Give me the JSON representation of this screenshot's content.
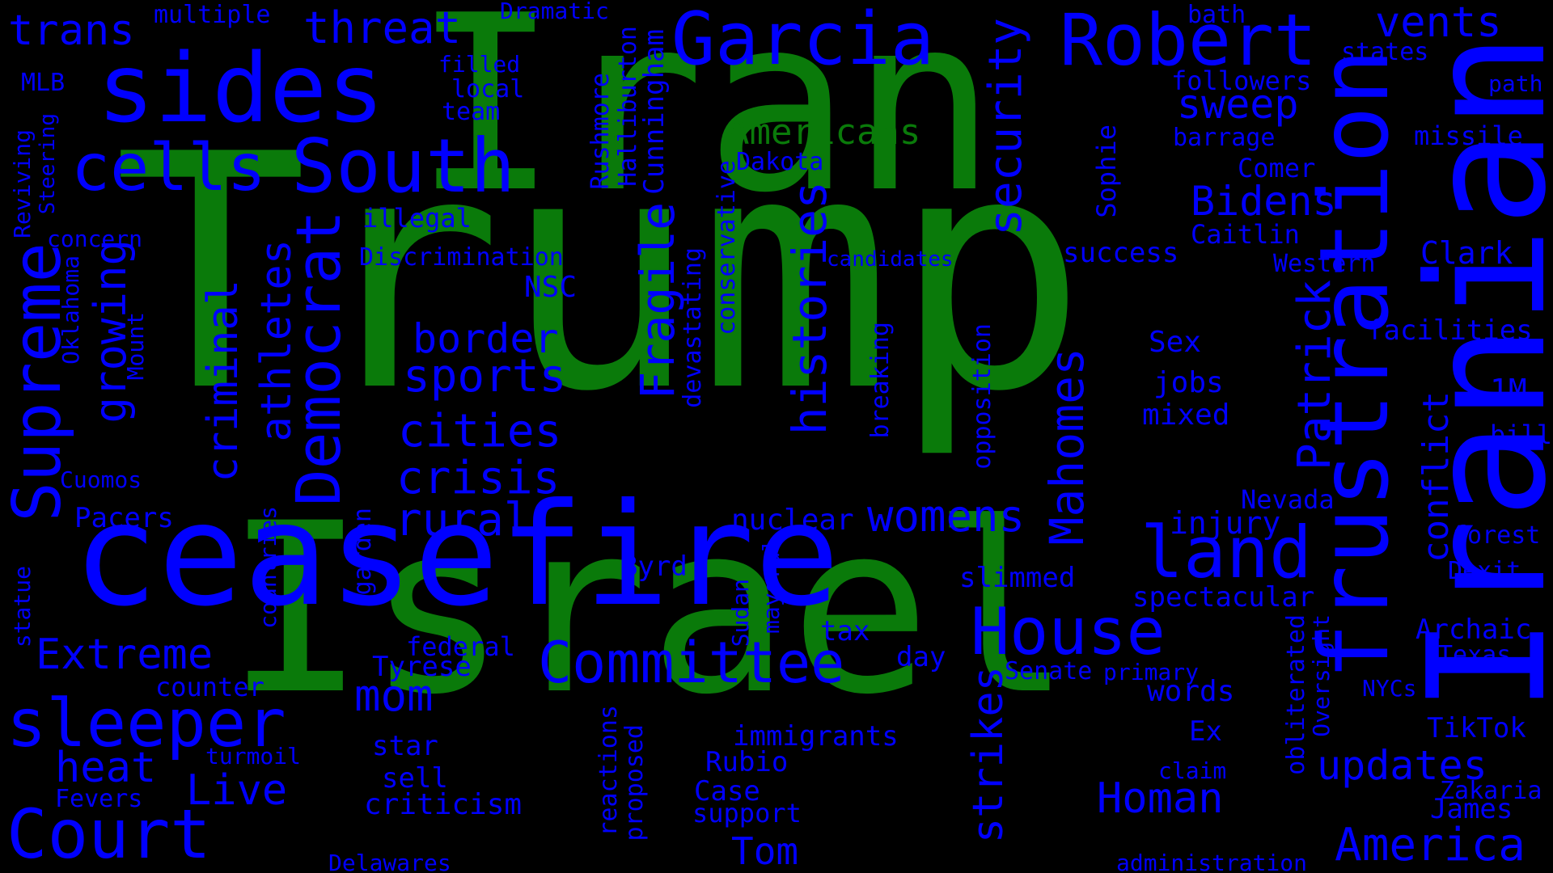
{
  "colors": {
    "background": "#000000",
    "major": "#0a7a0a",
    "minor": "#0000ff"
  },
  "words": [
    {
      "text": "Trump",
      "group": "major"
    },
    {
      "text": "Iran",
      "group": "major"
    },
    {
      "text": "Israel",
      "group": "major"
    },
    {
      "text": "Americans",
      "group": "major"
    },
    {
      "text": "Iranian",
      "group": "minor"
    },
    {
      "text": "ceasefire",
      "group": "minor"
    },
    {
      "text": "frustration",
      "group": "minor"
    },
    {
      "text": "sides",
      "group": "minor"
    },
    {
      "text": "Garcia",
      "group": "minor"
    },
    {
      "text": "Robert",
      "group": "minor"
    },
    {
      "text": "South",
      "group": "minor"
    },
    {
      "text": "cells",
      "group": "minor"
    },
    {
      "text": "Court",
      "group": "minor"
    },
    {
      "text": "sleeper",
      "group": "minor"
    },
    {
      "text": "Supreme",
      "group": "minor"
    },
    {
      "text": "House",
      "group": "minor"
    },
    {
      "text": "Committee",
      "group": "minor"
    },
    {
      "text": "America",
      "group": "minor"
    },
    {
      "text": "threat",
      "group": "minor"
    },
    {
      "text": "vents",
      "group": "minor"
    },
    {
      "text": "trans",
      "group": "minor"
    },
    {
      "text": "multiple",
      "group": "minor"
    },
    {
      "text": "Dramatic",
      "group": "minor"
    },
    {
      "text": "bath",
      "group": "minor"
    },
    {
      "text": "states",
      "group": "minor"
    },
    {
      "text": "path",
      "group": "minor"
    },
    {
      "text": "MLB",
      "group": "minor"
    },
    {
      "text": "filled",
      "group": "minor"
    },
    {
      "text": "local",
      "group": "minor"
    },
    {
      "text": "team",
      "group": "minor"
    },
    {
      "text": "followers",
      "group": "minor"
    },
    {
      "text": "sweep",
      "group": "minor"
    },
    {
      "text": "barrage",
      "group": "minor"
    },
    {
      "text": "missile",
      "group": "minor"
    },
    {
      "text": "Comer",
      "group": "minor"
    },
    {
      "text": "Bidens",
      "group": "minor"
    },
    {
      "text": "Caitlin",
      "group": "minor"
    },
    {
      "text": "Dakota",
      "group": "minor"
    },
    {
      "text": "illegal",
      "group": "minor"
    },
    {
      "text": "concern",
      "group": "minor"
    },
    {
      "text": "Discrimination",
      "group": "minor"
    },
    {
      "text": "candidates",
      "group": "minor"
    },
    {
      "text": "success",
      "group": "minor"
    },
    {
      "text": "Western",
      "group": "minor"
    },
    {
      "text": "Clark",
      "group": "minor"
    },
    {
      "text": "facilities",
      "group": "minor"
    },
    {
      "text": "NSC",
      "group": "minor"
    },
    {
      "text": "border",
      "group": "minor"
    },
    {
      "text": "Sex",
      "group": "minor"
    },
    {
      "text": "jobs",
      "group": "minor"
    },
    {
      "text": "mixed",
      "group": "minor"
    },
    {
      "text": "1M",
      "group": "minor"
    },
    {
      "text": "bill",
      "group": "minor"
    },
    {
      "text": "sports",
      "group": "minor"
    },
    {
      "text": "cities",
      "group": "minor"
    },
    {
      "text": "crisis",
      "group": "minor"
    },
    {
      "text": "rural",
      "group": "minor"
    },
    {
      "text": "Cuomos",
      "group": "minor"
    },
    {
      "text": "Pacers",
      "group": "minor"
    },
    {
      "text": "womens",
      "group": "minor"
    },
    {
      "text": "Nevada",
      "group": "minor"
    },
    {
      "text": "injury",
      "group": "minor"
    },
    {
      "text": "forest",
      "group": "minor"
    },
    {
      "text": "nuclear",
      "group": "minor"
    },
    {
      "text": "land",
      "group": "minor"
    },
    {
      "text": "Byrd",
      "group": "minor"
    },
    {
      "text": "slimmed",
      "group": "minor"
    },
    {
      "text": "Dexit",
      "group": "minor"
    },
    {
      "text": "spectacular",
      "group": "minor"
    },
    {
      "text": "Archaic",
      "group": "minor"
    },
    {
      "text": "Extreme",
      "group": "minor"
    },
    {
      "text": "tax",
      "group": "minor"
    },
    {
      "text": "federal",
      "group": "minor"
    },
    {
      "text": "day",
      "group": "minor"
    },
    {
      "text": "Texas",
      "group": "minor"
    },
    {
      "text": "Tyrese",
      "group": "minor"
    },
    {
      "text": "Senate",
      "group": "minor"
    },
    {
      "text": "primary",
      "group": "minor"
    },
    {
      "text": "counter",
      "group": "minor"
    },
    {
      "text": "words",
      "group": "minor"
    },
    {
      "text": "NYCs",
      "group": "minor"
    },
    {
      "text": "mom",
      "group": "minor"
    },
    {
      "text": "immigrants",
      "group": "minor"
    },
    {
      "text": "Ex",
      "group": "minor"
    },
    {
      "text": "TikTok",
      "group": "minor"
    },
    {
      "text": "heat",
      "group": "minor"
    },
    {
      "text": "turmoil",
      "group": "minor"
    },
    {
      "text": "star",
      "group": "minor"
    },
    {
      "text": "Rubio",
      "group": "minor"
    },
    {
      "text": "updates",
      "group": "minor"
    },
    {
      "text": "sell",
      "group": "minor"
    },
    {
      "text": "claim",
      "group": "minor"
    },
    {
      "text": "Live",
      "group": "minor"
    },
    {
      "text": "Fevers",
      "group": "minor"
    },
    {
      "text": "Case",
      "group": "minor"
    },
    {
      "text": "Zakaria",
      "group": "minor"
    },
    {
      "text": "criticism",
      "group": "minor"
    },
    {
      "text": "Homan",
      "group": "minor"
    },
    {
      "text": "support",
      "group": "minor"
    },
    {
      "text": "James",
      "group": "minor"
    },
    {
      "text": "Tom",
      "group": "minor"
    },
    {
      "text": "Delawares",
      "group": "minor"
    },
    {
      "text": "administration",
      "group": "minor"
    },
    {
      "text": "Reviving",
      "group": "minor"
    },
    {
      "text": "Steering",
      "group": "minor"
    },
    {
      "text": "Oklahoma",
      "group": "minor"
    },
    {
      "text": "Mount",
      "group": "minor"
    },
    {
      "text": "growing",
      "group": "minor"
    },
    {
      "text": "criminal",
      "group": "minor"
    },
    {
      "text": "athletes",
      "group": "minor"
    },
    {
      "text": "Democrat",
      "group": "minor"
    },
    {
      "text": "statue",
      "group": "minor"
    },
    {
      "text": "countries",
      "group": "minor"
    },
    {
      "text": "garden",
      "group": "minor"
    },
    {
      "text": "Rushmore",
      "group": "minor"
    },
    {
      "text": "Halliburton",
      "group": "minor"
    },
    {
      "text": "Cunningham",
      "group": "minor"
    },
    {
      "text": "Fragile",
      "group": "minor"
    },
    {
      "text": "conservative",
      "group": "minor"
    },
    {
      "text": "devastating",
      "group": "minor"
    },
    {
      "text": "histories",
      "group": "minor"
    },
    {
      "text": "security",
      "group": "minor"
    },
    {
      "text": "breaking",
      "group": "minor"
    },
    {
      "text": "Sophie",
      "group": "minor"
    },
    {
      "text": "opposition",
      "group": "minor"
    },
    {
      "text": "Mahomes",
      "group": "minor"
    },
    {
      "text": "Patrick",
      "group": "minor"
    },
    {
      "text": "conflict",
      "group": "minor"
    },
    {
      "text": "Sudan",
      "group": "minor"
    },
    {
      "text": "mayoral",
      "group": "minor"
    },
    {
      "text": "strikes",
      "group": "minor"
    },
    {
      "text": "obliterated",
      "group": "minor"
    },
    {
      "text": "Oversight",
      "group": "minor"
    },
    {
      "text": "reactions",
      "group": "minor"
    },
    {
      "text": "proposed",
      "group": "minor"
    }
  ]
}
